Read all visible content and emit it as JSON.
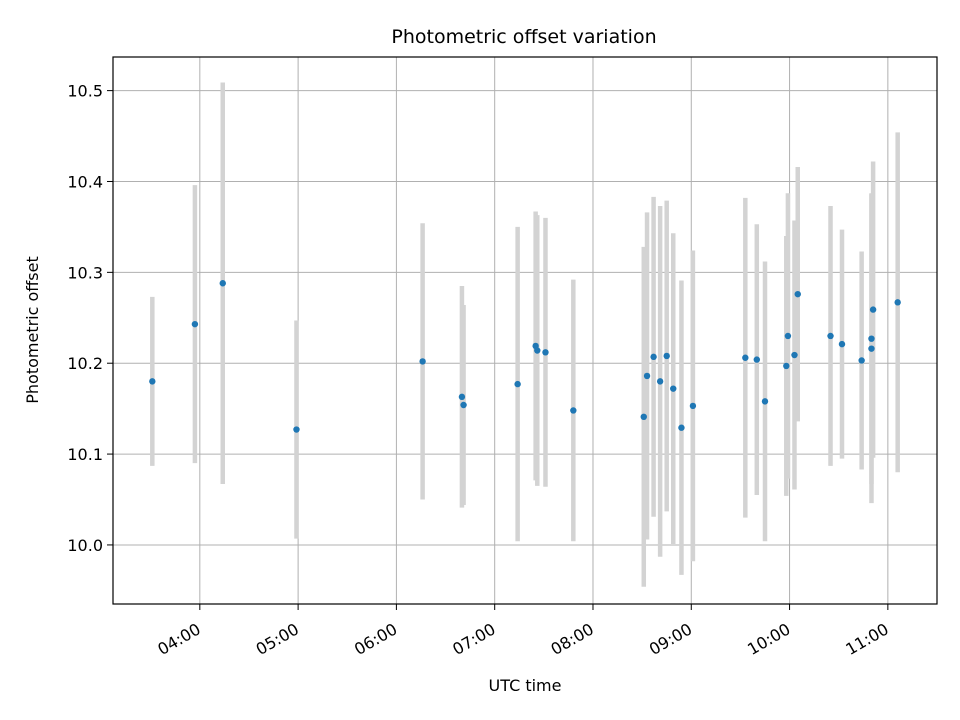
{
  "chart_data": {
    "type": "scatter",
    "title": "Photometric offset variation",
    "xlabel": "UTC time",
    "ylabel": "Photometric offset",
    "x_axis_type": "time",
    "xlim": [
      "03:07",
      "11:30"
    ],
    "ylim": [
      9.935,
      10.537
    ],
    "grid": true,
    "x_ticks": [
      "04:00",
      "05:00",
      "06:00",
      "07:00",
      "08:00",
      "09:00",
      "10:00",
      "11:00"
    ],
    "y_ticks": [
      10.0,
      10.1,
      10.2,
      10.3,
      10.4,
      10.5
    ],
    "y_tick_labels": [
      "10.0",
      "10.1",
      "10.2",
      "10.3",
      "10.4",
      "10.5"
    ],
    "colors": {
      "points": "#1f77b4",
      "error_bars": "#d3d3d3",
      "grid": "#b0b0b0"
    },
    "points": [
      {
        "x": "03:31",
        "y": 10.18,
        "err": 0.093
      },
      {
        "x": "03:57",
        "y": 10.243,
        "err": 0.153
      },
      {
        "x": "04:14",
        "y": 10.288,
        "err": 0.221
      },
      {
        "x": "04:59",
        "y": 10.127,
        "err": 0.12
      },
      {
        "x": "06:16",
        "y": 10.202,
        "err": 0.152
      },
      {
        "x": "06:40",
        "y": 10.163,
        "err": 0.122
      },
      {
        "x": "06:41",
        "y": 10.154,
        "err": 0.11
      },
      {
        "x": "07:14",
        "y": 10.177,
        "err": 0.173
      },
      {
        "x": "07:25",
        "y": 10.219,
        "err": 0.148
      },
      {
        "x": "07:26",
        "y": 10.214,
        "err": 0.149
      },
      {
        "x": "07:31",
        "y": 10.212,
        "err": 0.148
      },
      {
        "x": "07:48",
        "y": 10.148,
        "err": 0.144
      },
      {
        "x": "08:31",
        "y": 10.141,
        "err": 0.187
      },
      {
        "x": "08:33",
        "y": 10.186,
        "err": 0.18
      },
      {
        "x": "08:37",
        "y": 10.207,
        "err": 0.176
      },
      {
        "x": "08:41",
        "y": 10.18,
        "err": 0.193
      },
      {
        "x": "08:45",
        "y": 10.208,
        "err": 0.171
      },
      {
        "x": "08:49",
        "y": 10.172,
        "err": 0.171
      },
      {
        "x": "08:54",
        "y": 10.129,
        "err": 0.162
      },
      {
        "x": "09:01",
        "y": 10.153,
        "err": 0.171
      },
      {
        "x": "09:33",
        "y": 10.206,
        "err": 0.176
      },
      {
        "x": "09:40",
        "y": 10.204,
        "err": 0.149
      },
      {
        "x": "09:45",
        "y": 10.158,
        "err": 0.154
      },
      {
        "x": "09:58",
        "y": 10.197,
        "err": 0.143
      },
      {
        "x": "09:59",
        "y": 10.23,
        "err": 0.157
      },
      {
        "x": "10:03",
        "y": 10.209,
        "err": 0.148
      },
      {
        "x": "10:05",
        "y": 10.276,
        "err": 0.14
      },
      {
        "x": "10:25",
        "y": 10.23,
        "err": 0.143
      },
      {
        "x": "10:32",
        "y": 10.221,
        "err": 0.126
      },
      {
        "x": "10:44",
        "y": 10.203,
        "err": 0.12
      },
      {
        "x": "10:50",
        "y": 10.216,
        "err": 0.17
      },
      {
        "x": "10:50",
        "y": 10.227,
        "err": 0.16
      },
      {
        "x": "10:51",
        "y": 10.259,
        "err": 0.163
      },
      {
        "x": "11:06",
        "y": 10.267,
        "err": 0.187
      }
    ]
  }
}
